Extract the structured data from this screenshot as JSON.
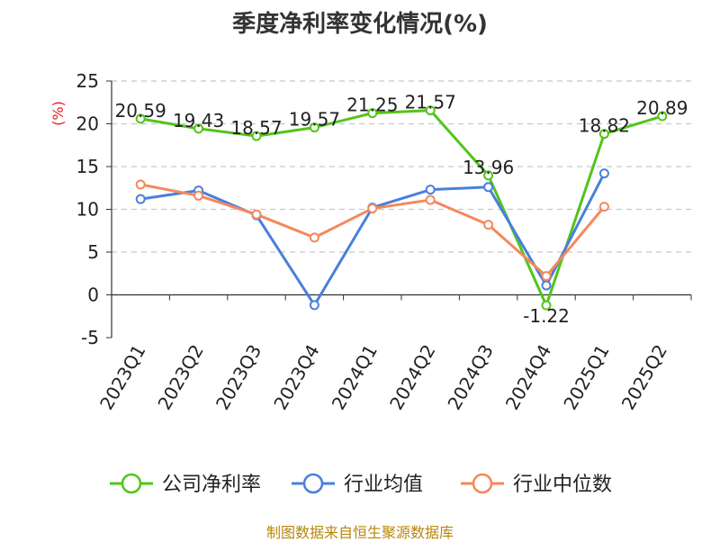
{
  "chart_data": {
    "type": "line",
    "title": "季度净利率变化情况(%)",
    "ylabel": "(%)",
    "categories": [
      "2023Q1",
      "2023Q2",
      "2023Q3",
      "2023Q4",
      "2024Q1",
      "2024Q2",
      "2024Q3",
      "2024Q4",
      "2025Q1",
      "2025Q2"
    ],
    "ylim": [
      -5,
      25
    ],
    "yticks": [
      -5,
      0,
      5,
      10,
      15,
      20,
      25
    ],
    "grid": true,
    "legend_position": "bottom",
    "series": [
      {
        "name": "公司净利率",
        "color": "#52c41a",
        "values": [
          20.59,
          19.43,
          18.57,
          19.57,
          21.25,
          21.57,
          13.96,
          -1.22,
          18.82,
          20.89
        ],
        "labels": [
          "20.59",
          "19.43",
          "18.57",
          "19.57",
          "21.25",
          "21.57",
          "13.96",
          "-1.22",
          "18.82",
          "20.89"
        ]
      },
      {
        "name": "行业均值",
        "color": "#4a7fdc",
        "values": [
          11.2,
          12.2,
          9.3,
          -1.2,
          10.2,
          12.3,
          12.6,
          1.1,
          14.2,
          null
        ]
      },
      {
        "name": "行业中位数",
        "color": "#f4885b",
        "values": [
          12.9,
          11.6,
          9.4,
          6.7,
          10.1,
          11.1,
          8.2,
          2.2,
          10.3,
          null
        ]
      }
    ]
  },
  "footer": "制图数据来自恒生聚源数据库"
}
